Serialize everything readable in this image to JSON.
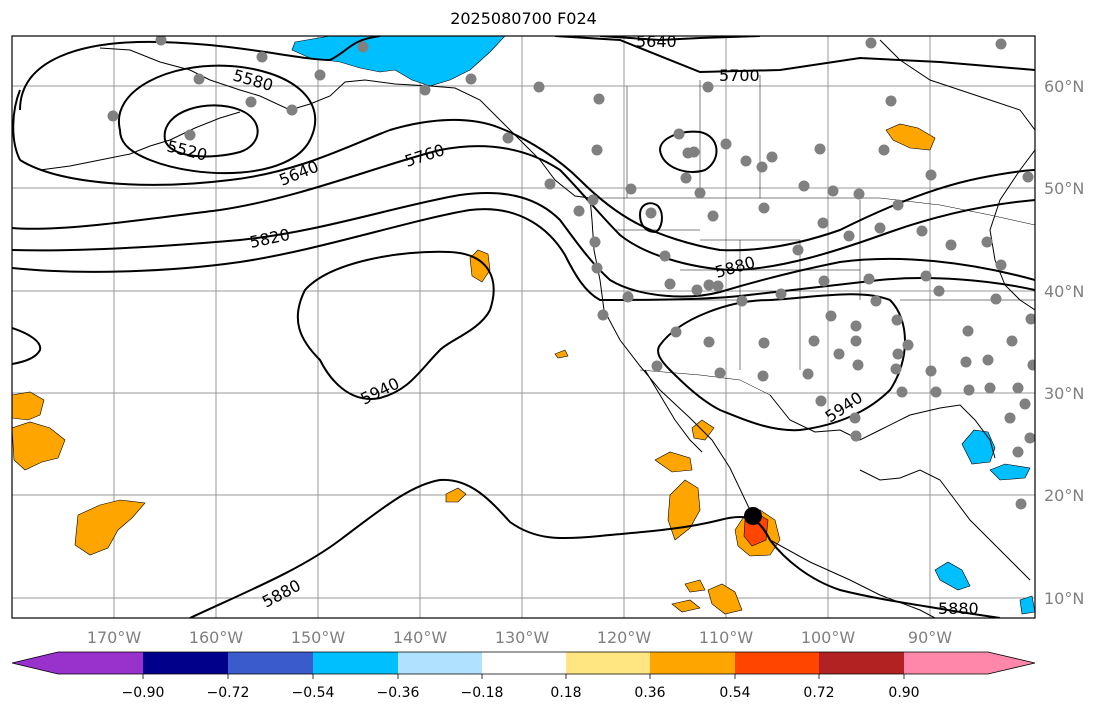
{
  "title": "2025080700 F024",
  "longitude_labels": [
    "170°W",
    "160°W",
    "150°W",
    "140°W",
    "130°W",
    "120°W",
    "110°W",
    "100°W",
    "90°W"
  ],
  "latitude_labels": [
    "60°N",
    "50°N",
    "40°N",
    "30°N",
    "20°N",
    "10°N"
  ],
  "contour_labels": [
    "5640",
    "5700",
    "5580",
    "5520",
    "5640",
    "5760",
    "5820",
    "5880",
    "5940",
    "5940",
    "5880",
    "5880"
  ],
  "colorbar": {
    "tick_labels": [
      "−0.90",
      "−0.72",
      "−0.54",
      "−0.36",
      "−0.18",
      "0.18",
      "0.36",
      "0.54",
      "0.72",
      "0.90"
    ],
    "colors": [
      "#9932cc",
      "#00008b",
      "#3a5bcc",
      "#00bfff",
      "#b0e2ff",
      "#ffffff",
      "#ffe680",
      "#ffa500",
      "#ff4500",
      "#b22222",
      "#ff88aa"
    ]
  },
  "colors": {
    "gridline": "#999999",
    "contour": "#000000",
    "station_dot": "#808080",
    "storm_marker": "#000000"
  }
}
